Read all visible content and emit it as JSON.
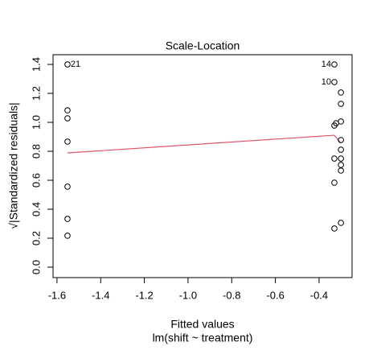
{
  "chart_data": {
    "type": "scatter",
    "title": "Scale-Location",
    "xlabel": "Fitted values",
    "sublabel": "lm(shift ~ treatment)",
    "ylabel": "√|Standardized residuals|",
    "xlim": [
      -1.618,
      -0.249
    ],
    "ylim": [
      -0.072,
      1.467
    ],
    "xticks": [
      -1.6,
      -1.4,
      -1.2,
      {
        "value": -1,
        "label": "-1.0"
      },
      -0.8,
      -0.6,
      -0.4
    ],
    "yticks": [
      {
        "value": 0,
        "label": "0.0"
      },
      0.2,
      0.4,
      0.6,
      0.8,
      {
        "value": 1,
        "label": "1.0"
      },
      1.2,
      1.4
    ],
    "points": {
      "color": "#000000",
      "x": [
        -1.552,
        -1.552,
        -1.552,
        -1.552,
        -1.552,
        -1.552,
        -1.552,
        -0.33,
        -0.33,
        -0.3,
        -0.3,
        -0.3,
        -0.322,
        -0.33,
        -0.3,
        -0.3,
        -0.33,
        -0.3,
        -0.3,
        -0.3,
        -0.33,
        -0.3,
        -0.33
      ],
      "y": [
        1.4,
        1.083,
        1.028,
        0.867,
        0.556,
        0.333,
        0.217,
        1.4,
        1.278,
        1.206,
        1.128,
        1.006,
        0.994,
        0.978,
        0.878,
        0.811,
        0.75,
        0.75,
        0.706,
        0.667,
        0.583,
        0.306,
        0.267
      ],
      "point_labels": [
        "21",
        null,
        null,
        null,
        null,
        null,
        null,
        "14",
        "10",
        null,
        null,
        null,
        null,
        null,
        null,
        null,
        null,
        null,
        null,
        null,
        null,
        null,
        null
      ]
    },
    "smoother": {
      "color": "#df536b",
      "x": [
        -1.552,
        -0.33,
        -0.3
      ],
      "y": [
        0.789,
        0.911,
        0.856
      ]
    }
  }
}
